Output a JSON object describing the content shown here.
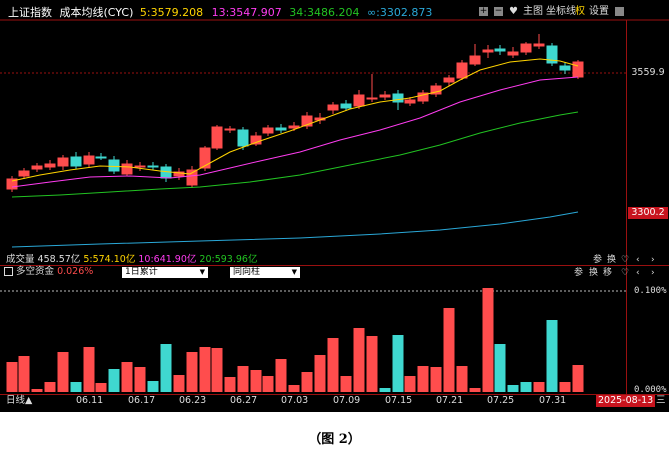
{
  "header": {
    "index_name": "上证指数",
    "indicator_name": "成本均线(CYC)",
    "ma5": "5:3579.208",
    "ma13": "13:3547.907",
    "ma34": "34:3486.204",
    "ma_inf": "∞:3302.873",
    "icons": [
      "+",
      "−",
      "♥"
    ],
    "tools": [
      "主图",
      "坐标线",
      "权",
      "设置"
    ]
  },
  "price_axis": {
    "upper": "3559.9",
    "lower": "3300.2"
  },
  "volume_bar": {
    "label": "成交量",
    "total": "458.57亿",
    "v5": "5:574.10亿",
    "v10": "10:641.90亿",
    "v20": "20:593.96亿",
    "controls": [
      "参",
      "换",
      "♡",
      "‹",
      "›"
    ]
  },
  "capital_panel": {
    "label": "多空资金",
    "value": "0.026%",
    "select1": "1日累计",
    "select2": "同向柱",
    "controls": [
      "参",
      "换",
      "移",
      "♡",
      "‹",
      "›"
    ],
    "axis_top": "0.100%",
    "axis_bottom": "0.000%"
  },
  "bottom": {
    "period": "日线▲",
    "dates": [
      "06.11",
      "06.17",
      "06.23",
      "06.27",
      "07.03",
      "07.09",
      "07.15",
      "07.21",
      "07.25",
      "07.31"
    ],
    "current_date": "2025-08-13",
    "weekday": "三"
  },
  "caption": "（图 2）",
  "colors": {
    "up": "#ff4d4d",
    "down": "#3fd8d0",
    "ma5": "#ffd400",
    "ma13": "#ff3cf0",
    "ma34": "#22c322",
    "ma_inf": "#2aa8d8",
    "selected_date_bg": "#c8141e"
  }
}
